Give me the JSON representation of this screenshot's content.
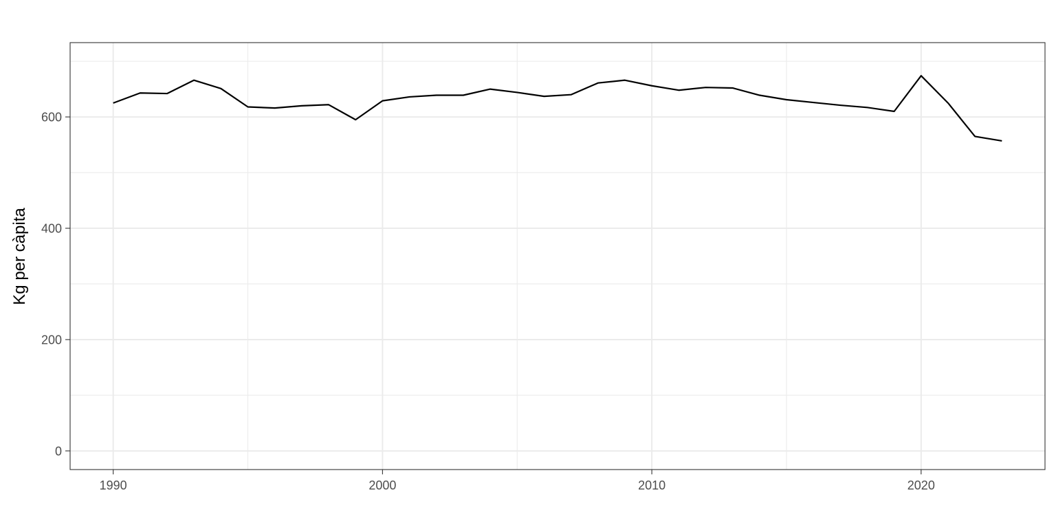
{
  "chart_data": {
    "type": "line",
    "title": "",
    "xlabel": "",
    "ylabel": "Kg per càpita",
    "xlim": [
      1988.4,
      2024.6
    ],
    "ylim": [
      -33.5,
      733.5
    ],
    "x_ticks": [
      1990,
      2000,
      2010,
      2020
    ],
    "x_minor_ticks": [
      1995,
      2005,
      2015
    ],
    "y_ticks": [
      0,
      200,
      400,
      600
    ],
    "y_minor_ticks": [
      100,
      300,
      500,
      700
    ],
    "grid": true,
    "legend": "none",
    "colors": {
      "line": "#000000",
      "grid": "#ebebeb",
      "border": "#333333",
      "tick_label": "#4d4d4d"
    },
    "series": [
      {
        "x": [
          1990,
          1991,
          1992,
          1993,
          1994,
          1995,
          1996,
          1997,
          1998,
          1999,
          2000,
          2001,
          2002,
          2003,
          2004,
          2005,
          2006,
          2007,
          2008,
          2009,
          2010,
          2011,
          2012,
          2013,
          2014,
          2015,
          2016,
          2017,
          2018,
          2019,
          2020,
          2021,
          2022,
          2023
        ],
        "values": [
          625,
          643,
          642,
          666,
          651,
          618,
          616,
          620,
          622,
          595,
          629,
          636,
          639,
          639,
          650,
          644,
          637,
          640,
          661,
          666,
          656,
          648,
          653,
          652,
          639,
          631,
          626,
          621,
          617,
          610,
          674,
          625,
          565,
          557
        ]
      }
    ]
  }
}
